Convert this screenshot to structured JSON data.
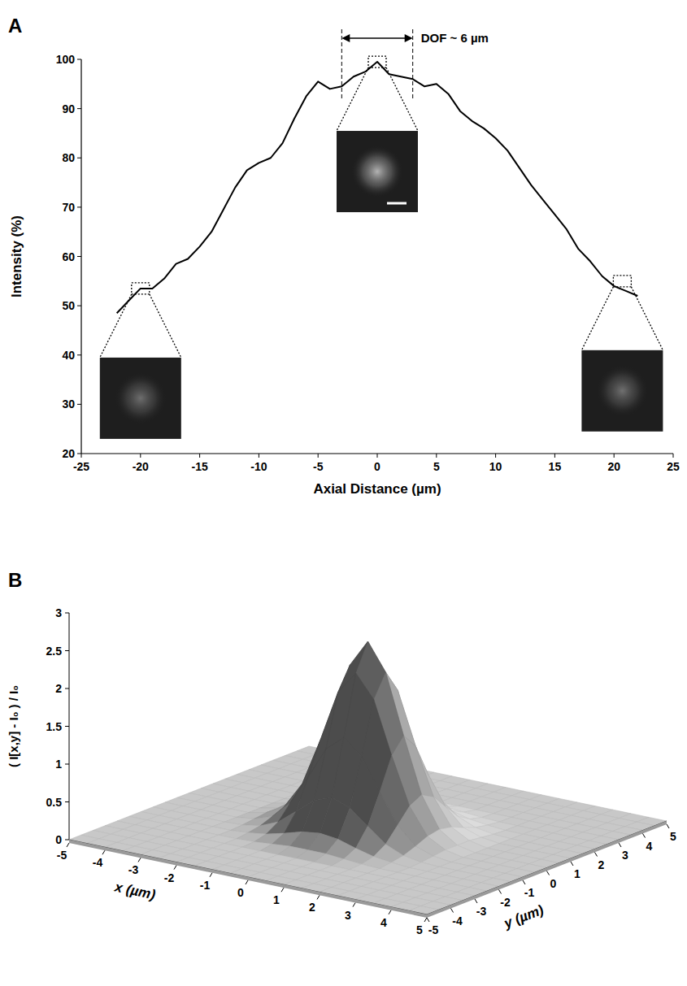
{
  "chart_data": [
    {
      "panel_label": "A",
      "type": "line",
      "x_label": "Axial Distance (µm)",
      "y_label": "Intensity (%)",
      "x": [
        -22,
        -21,
        -20,
        -19,
        -18,
        -17,
        -16,
        -15,
        -14,
        -13,
        -12,
        -11,
        -10,
        -9,
        -8,
        -7,
        -6,
        -5,
        -4,
        -3,
        -2,
        -1,
        0,
        1,
        2,
        3,
        4,
        5,
        6,
        7,
        8,
        9,
        10,
        11,
        12,
        13,
        14,
        15,
        16,
        17,
        18,
        19,
        20,
        21,
        22
      ],
      "values": [
        48.5,
        51,
        53.5,
        53.5,
        55.5,
        58.5,
        59.5,
        62,
        65,
        69.5,
        74,
        77.5,
        79,
        80,
        83,
        88,
        92.5,
        95.5,
        94,
        94.5,
        96.5,
        97.5,
        99.5,
        97,
        96.5,
        96,
        94.5,
        95,
        93,
        89.5,
        87.5,
        86,
        84,
        81.5,
        78,
        74.5,
        71.5,
        68.5,
        65.5,
        61.5,
        59,
        56,
        54,
        53,
        52
      ],
      "color": "#000000",
      "xlim": [
        -25,
        25
      ],
      "xticks": [
        -25,
        -20,
        -15,
        -10,
        -5,
        0,
        5,
        10,
        15,
        20,
        25
      ],
      "ylim": [
        20,
        100
      ],
      "yticks": [
        20,
        30,
        40,
        50,
        60,
        70,
        80,
        90,
        100
      ],
      "grid": false,
      "annotations": [
        {
          "text": "DOF ~ 6 µm",
          "x_range": [
            -3,
            3
          ]
        }
      ],
      "insets": [
        {
          "x": -20,
          "y": 53.5
        },
        {
          "x": 0,
          "y": 99.5
        },
        {
          "x": 20.7,
          "y": 55
        }
      ]
    },
    {
      "panel_label": "B",
      "type": "surface",
      "x_label": "x (µm)",
      "y_label": "y (µm)",
      "z_label": "( I[x,y] - I₀ ) / I₀",
      "color": "#c8c8c8",
      "x": [
        -5,
        -4.5,
        -4,
        -3.5,
        -3,
        -2.5,
        -2,
        -1.5,
        -1,
        -0.5,
        0,
        0.5,
        1,
        1.5,
        2,
        2.5,
        3,
        3.5,
        4,
        4.5,
        5
      ],
      "y": [
        -5,
        -4.5,
        -4,
        -3.5,
        -3,
        -2.5,
        -2,
        -1.5,
        -1,
        -0.5,
        0,
        0.5,
        1,
        1.5,
        2,
        2.5,
        3,
        3.5,
        4,
        4.5,
        5
      ],
      "z": [
        [
          0,
          0,
          0,
          0,
          0,
          0,
          0,
          0,
          0,
          0,
          0,
          0,
          0,
          0,
          0,
          0,
          0,
          0,
          0,
          0,
          0
        ],
        [
          0,
          0,
          0,
          0,
          0,
          0,
          0,
          0,
          0,
          0,
          0,
          0,
          0,
          0,
          0,
          0,
          0,
          0,
          0,
          0,
          0
        ],
        [
          0,
          0,
          0,
          0,
          0,
          0,
          0,
          0,
          0,
          0,
          0,
          0,
          0,
          0,
          0,
          0,
          0,
          0,
          0,
          0,
          0
        ],
        [
          0,
          0,
          0,
          0,
          0,
          0,
          0,
          0,
          0,
          0,
          0,
          0,
          0,
          0,
          0,
          0,
          0,
          0,
          0,
          0,
          0
        ],
        [
          0,
          0,
          0,
          0,
          0,
          0,
          0,
          0,
          0,
          0,
          0,
          0,
          0,
          0,
          0,
          0,
          0,
          0,
          0,
          0,
          0
        ],
        [
          0,
          0,
          0,
          0,
          0,
          0,
          0,
          0.01,
          0.03,
          0.05,
          0.05,
          0.05,
          0.03,
          0.01,
          0,
          0,
          0,
          0,
          0,
          0,
          0
        ],
        [
          0,
          0,
          0,
          0,
          0,
          0,
          0.02,
          0.05,
          0.11,
          0.18,
          0.21,
          0.18,
          0.11,
          0.05,
          0.02,
          0,
          0,
          0,
          0,
          0,
          0
        ],
        [
          0,
          0,
          0,
          0,
          0,
          0.01,
          0.05,
          0.15,
          0.34,
          0.53,
          0.62,
          0.53,
          0.34,
          0.15,
          0.05,
          0.01,
          0,
          0,
          0,
          0,
          0
        ],
        [
          0,
          0,
          0,
          0,
          0,
          0.03,
          0.11,
          0.34,
          0.73,
          1.15,
          1.35,
          1.15,
          0.73,
          0.34,
          0.11,
          0.03,
          0,
          0,
          0,
          0,
          0
        ],
        [
          0,
          0,
          0,
          0,
          0,
          0.05,
          0.18,
          0.53,
          1.15,
          1.84,
          2.14,
          1.84,
          1.15,
          0.53,
          0.18,
          0.05,
          0,
          0,
          0,
          0,
          0
        ],
        [
          0,
          0,
          0,
          0,
          0,
          0.05,
          0.21,
          0.62,
          1.35,
          2.14,
          2.5,
          2.14,
          1.35,
          0.62,
          0.21,
          0.05,
          0,
          0,
          0,
          0,
          0
        ],
        [
          0,
          0,
          0,
          0,
          0,
          0.05,
          0.18,
          0.53,
          1.15,
          1.84,
          2.14,
          1.84,
          1.15,
          0.53,
          0.18,
          0.05,
          0,
          0,
          0,
          0,
          0
        ],
        [
          0,
          0,
          0,
          0,
          0,
          0.03,
          0.11,
          0.34,
          0.73,
          1.15,
          1.35,
          1.15,
          0.73,
          0.34,
          0.11,
          0.03,
          0,
          0,
          0,
          0,
          0
        ],
        [
          0,
          0,
          0,
          0,
          0,
          0.01,
          0.05,
          0.15,
          0.34,
          0.53,
          0.62,
          0.53,
          0.34,
          0.15,
          0.05,
          0.01,
          0,
          0,
          0,
          0,
          0
        ],
        [
          0,
          0,
          0,
          0,
          0,
          0,
          0.02,
          0.05,
          0.11,
          0.18,
          0.21,
          0.18,
          0.11,
          0.05,
          0.02,
          0,
          0,
          0,
          0,
          0,
          0
        ],
        [
          0,
          0,
          0,
          0,
          0,
          0,
          0,
          0.01,
          0.03,
          0.05,
          0.05,
          0.05,
          0.03,
          0.01,
          0,
          0,
          0,
          0,
          0,
          0,
          0
        ],
        [
          0,
          0,
          0,
          0,
          0,
          0,
          0,
          0,
          0,
          0,
          0,
          0,
          0,
          0,
          0,
          0,
          0,
          0,
          0,
          0,
          0
        ],
        [
          0,
          0,
          0,
          0,
          0,
          0,
          0,
          0,
          0,
          0,
          0,
          0,
          0,
          0,
          0,
          0,
          0,
          0,
          0,
          0,
          0
        ],
        [
          0,
          0,
          0,
          0,
          0,
          0,
          0,
          0,
          0,
          0,
          0,
          0,
          0,
          0,
          0,
          0,
          0,
          0,
          0,
          0,
          0
        ],
        [
          0,
          0,
          0,
          0,
          0,
          0,
          0,
          0,
          0,
          0,
          0,
          0,
          0,
          0,
          0,
          0,
          0,
          0,
          0,
          0,
          0
        ],
        [
          0,
          0,
          0,
          0,
          0,
          0,
          0,
          0,
          0,
          0,
          0,
          0,
          0,
          0,
          0,
          0,
          0,
          0,
          0,
          0,
          0
        ]
      ],
      "xlim": [
        -5,
        5
      ],
      "xticks": [
        -5,
        -4,
        -3,
        -2,
        -1,
        0,
        1,
        2,
        3,
        4,
        5
      ],
      "ylim": [
        -5,
        5
      ],
      "yticks": [
        -5,
        -4,
        -3,
        -2,
        -1,
        0,
        1,
        2,
        3,
        4,
        5
      ],
      "zlim": [
        0,
        3
      ],
      "zticks": [
        0,
        0.5,
        1,
        1.5,
        2,
        2.5,
        3
      ]
    }
  ]
}
